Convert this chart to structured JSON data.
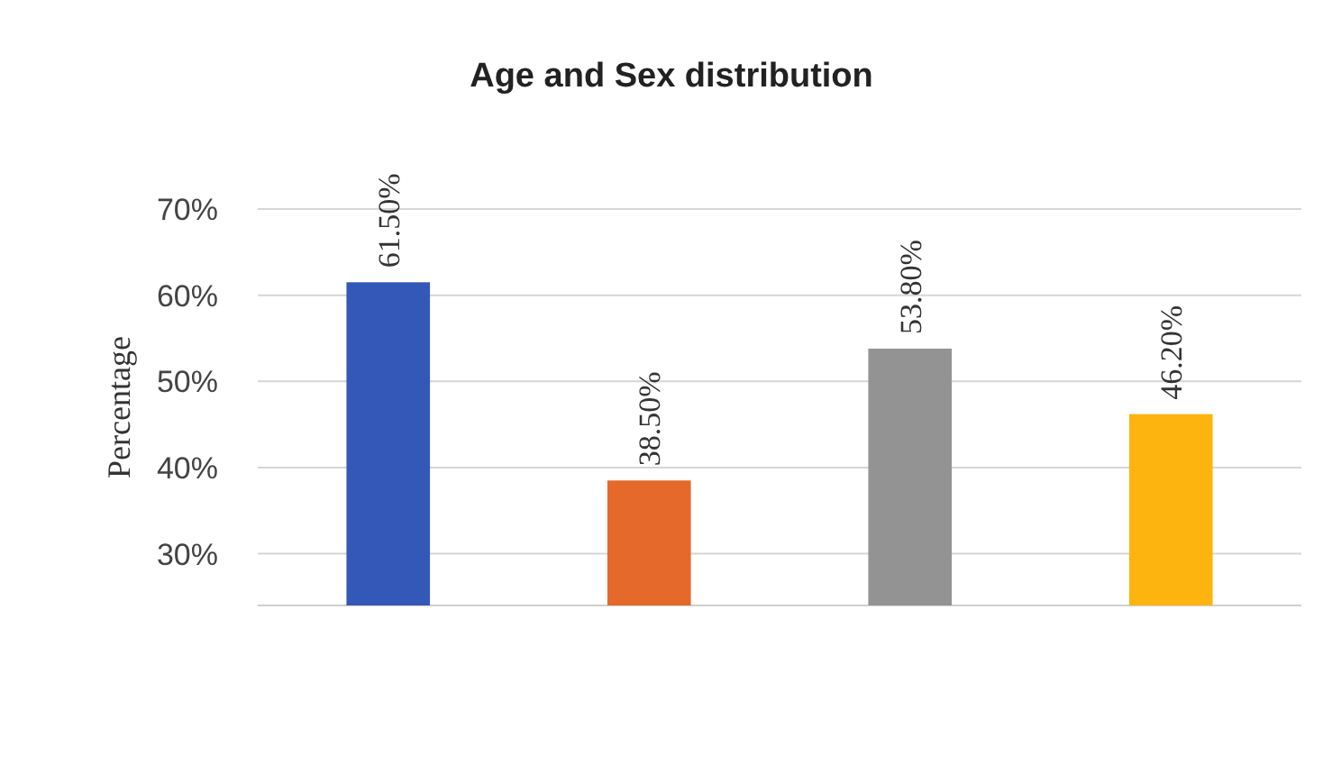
{
  "chart_data": {
    "type": "bar",
    "title": "Age and Sex distribution",
    "ylabel": "Percentage",
    "categories": [
      null,
      null,
      null,
      null
    ],
    "values": [
      61.5,
      38.5,
      53.8,
      46.2
    ],
    "colors": [
      "#3358b8",
      "#e5692a",
      "#939393",
      "#fdb40f"
    ],
    "value_labels": [
      "61.50%",
      "38.50%",
      "53.80%",
      "46.20%"
    ],
    "ylim": [
      24,
      70
    ],
    "yticks": [
      {
        "value": 30,
        "label": "30%"
      },
      {
        "value": 40,
        "label": "40%"
      },
      {
        "value": 50,
        "label": "50%"
      },
      {
        "value": 60,
        "label": "60%"
      },
      {
        "value": 70,
        "label": "70%"
      }
    ],
    "grid": "y"
  }
}
